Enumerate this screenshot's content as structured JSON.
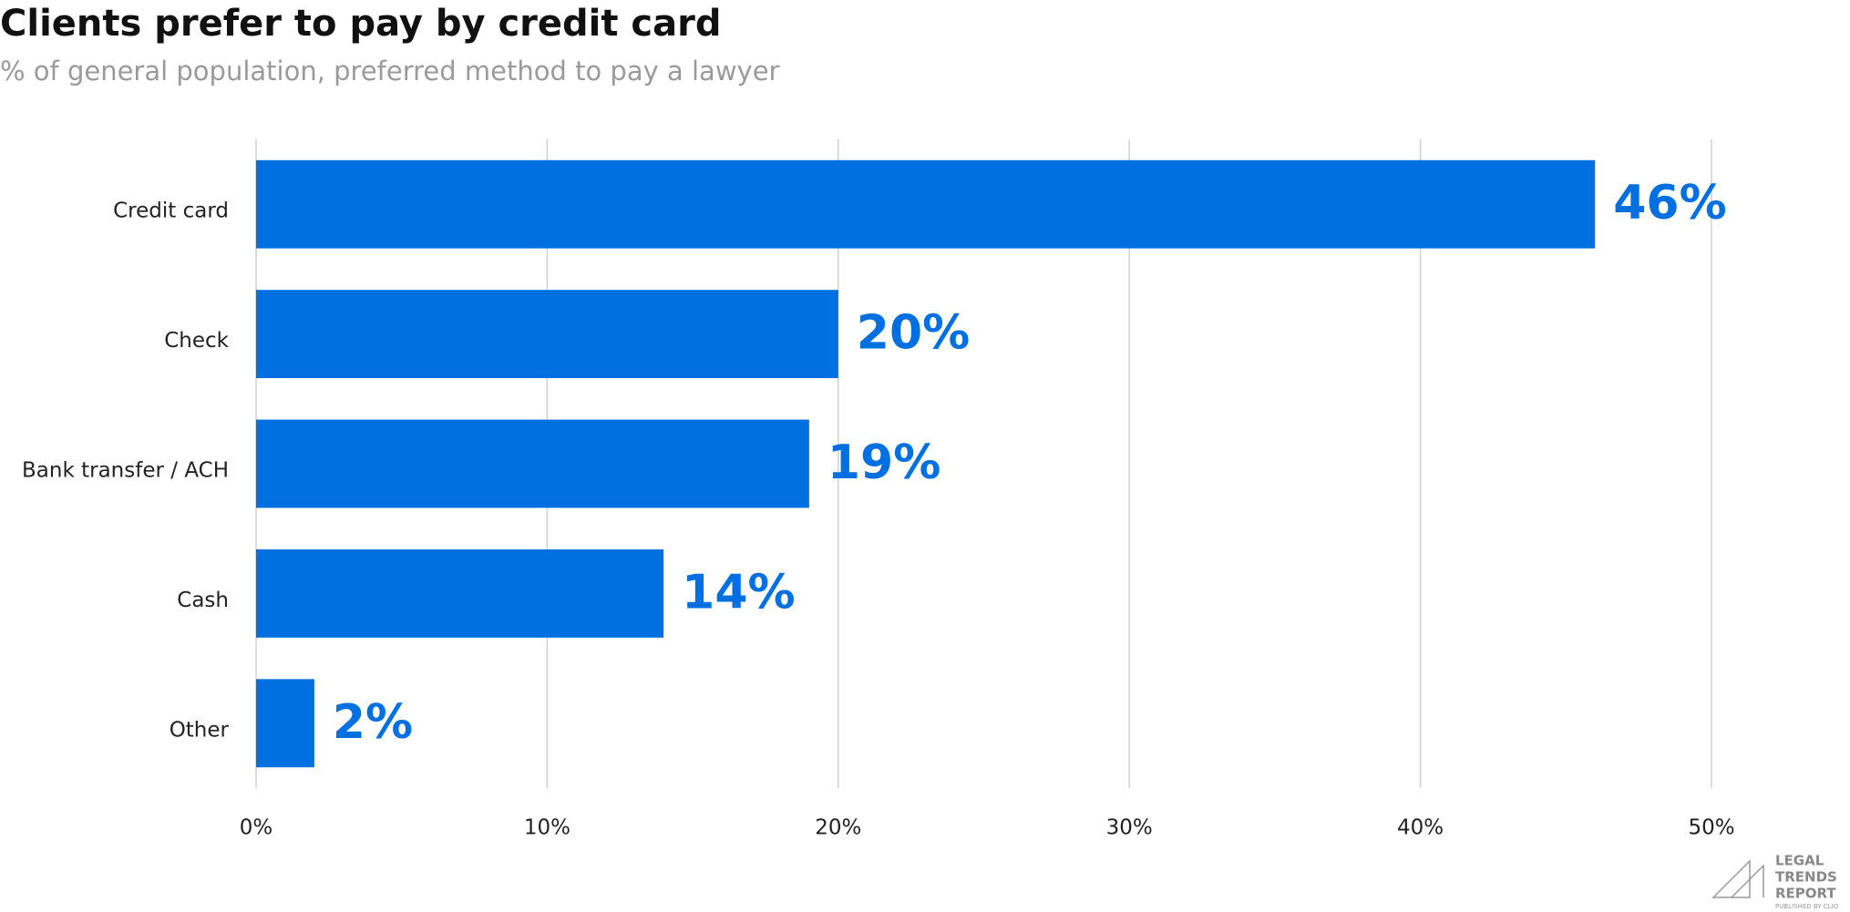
{
  "chart_data": {
    "type": "bar",
    "orientation": "horizontal",
    "title": "Clients prefer to pay by credit card",
    "subtitle": "% of general population, preferred method to pay a lawyer",
    "categories": [
      "Credit card",
      "Check",
      "Bank transfer / ACH",
      "Cash",
      "Other"
    ],
    "values": [
      46,
      20,
      19,
      14,
      2
    ],
    "value_labels": [
      "46%",
      "20%",
      "19%",
      "14%",
      "2%"
    ],
    "color": "#0070e0",
    "xlim": [
      0,
      50
    ],
    "xticks": [
      {
        "value": 0,
        "label": "0%"
      },
      {
        "value": 10,
        "label": "10%"
      },
      {
        "value": 20,
        "label": "20%"
      },
      {
        "value": 30,
        "label": "30%"
      },
      {
        "value": 40,
        "label": "40%"
      },
      {
        "value": 50,
        "label": "50%"
      }
    ],
    "grid": true
  },
  "logo": {
    "lines": [
      "LEGAL",
      "TRENDS",
      "REPORT"
    ],
    "tagline": "PUBLISHED BY CLIO"
  }
}
